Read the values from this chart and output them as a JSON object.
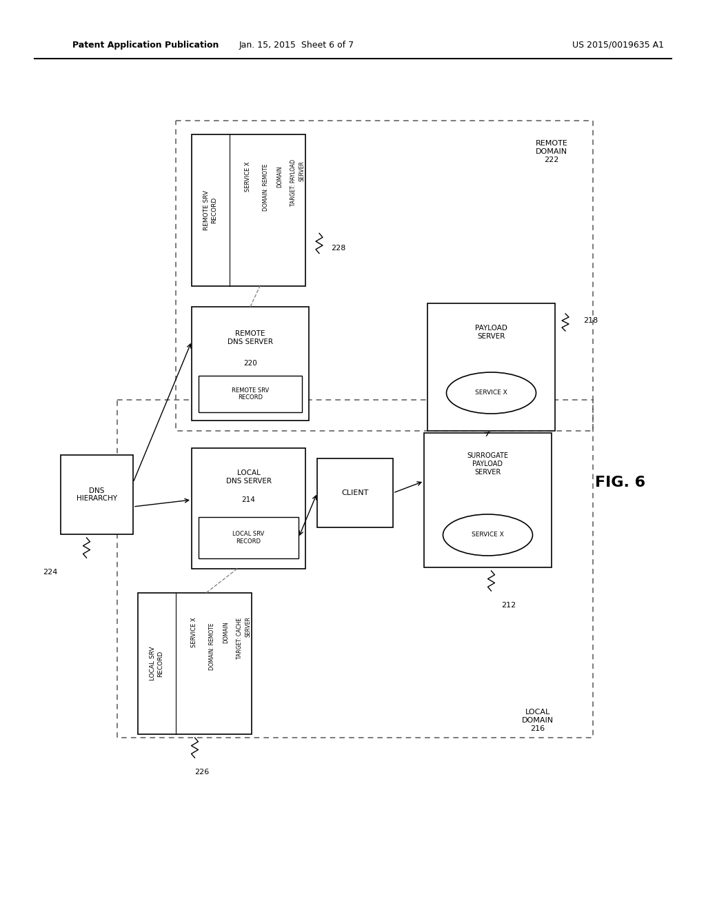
{
  "title_left": "Patent Application Publication",
  "title_mid": "Jan. 15, 2015  Sheet 6 of 7",
  "title_right": "US 2015/0019635 A1",
  "fig_label": "FIG. 6",
  "bg_color": "#ffffff"
}
